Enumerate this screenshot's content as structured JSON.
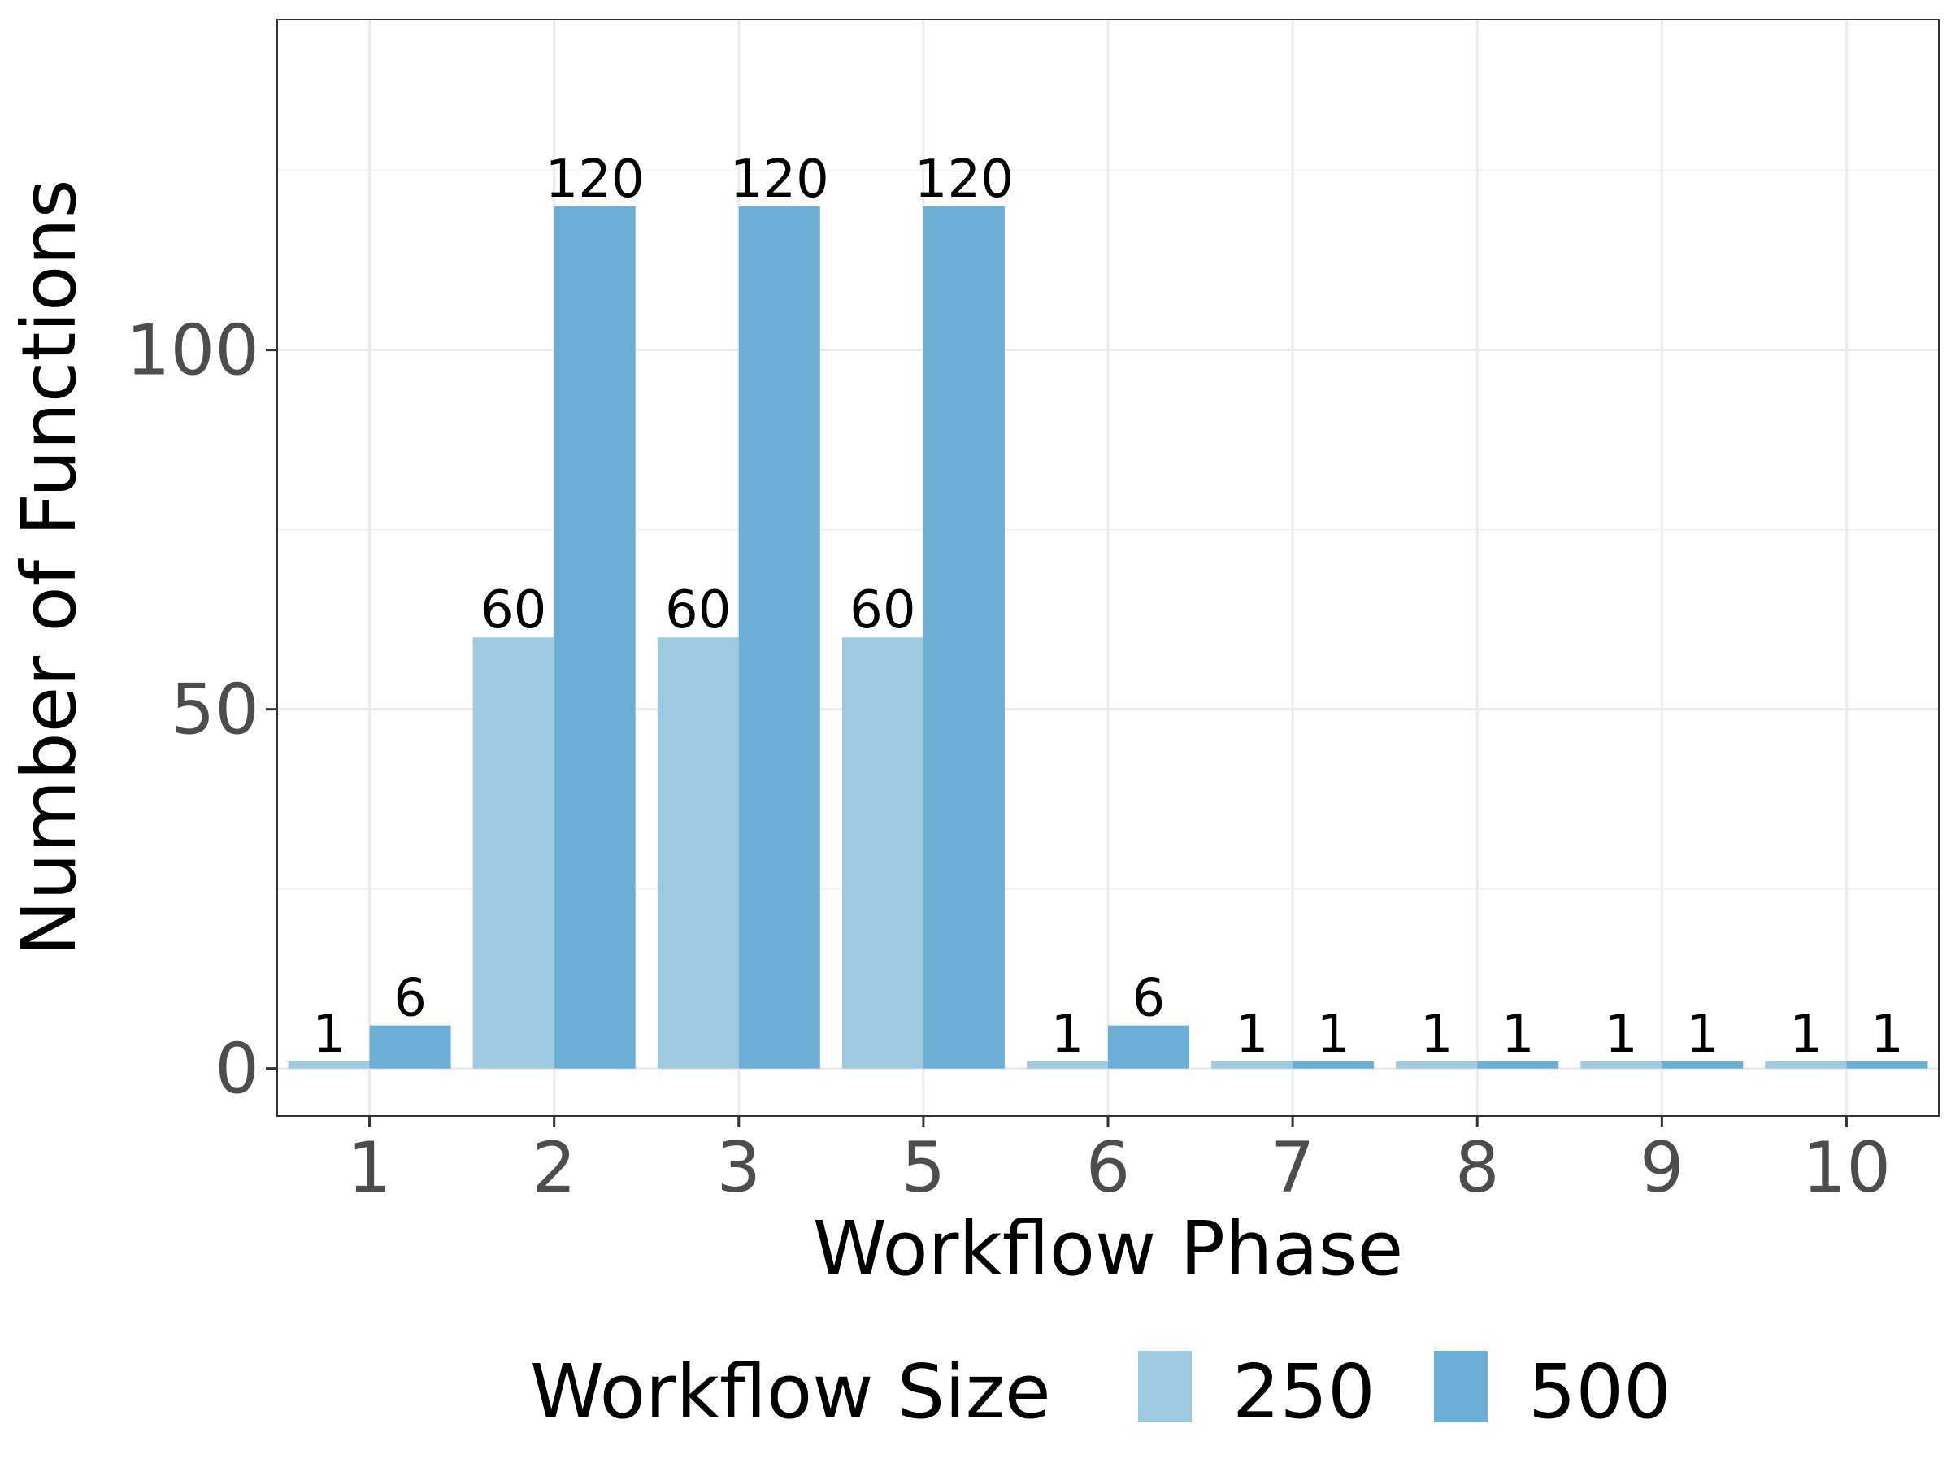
{
  "chart_data": {
    "type": "bar",
    "xlabel": "Workflow Phase",
    "ylabel": "Number of Functions",
    "categories": [
      "1",
      "2",
      "3",
      "5",
      "6",
      "7",
      "8",
      "9",
      "10"
    ],
    "series": [
      {
        "name": "250",
        "color": "#9ecae1",
        "values": [
          1,
          60,
          60,
          60,
          1,
          1,
          1,
          1,
          1
        ]
      },
      {
        "name": "500",
        "color": "#6baed6",
        "values": [
          6,
          120,
          120,
          120,
          6,
          1,
          1,
          1,
          1
        ]
      }
    ],
    "ylim": [
      -6.6,
      146
    ],
    "yticks": [
      0,
      50,
      100
    ],
    "ygrid_minor": [
      25,
      75,
      125
    ],
    "grid": true,
    "legend": {
      "title": "Workflow Size",
      "position": "bottom"
    }
  }
}
